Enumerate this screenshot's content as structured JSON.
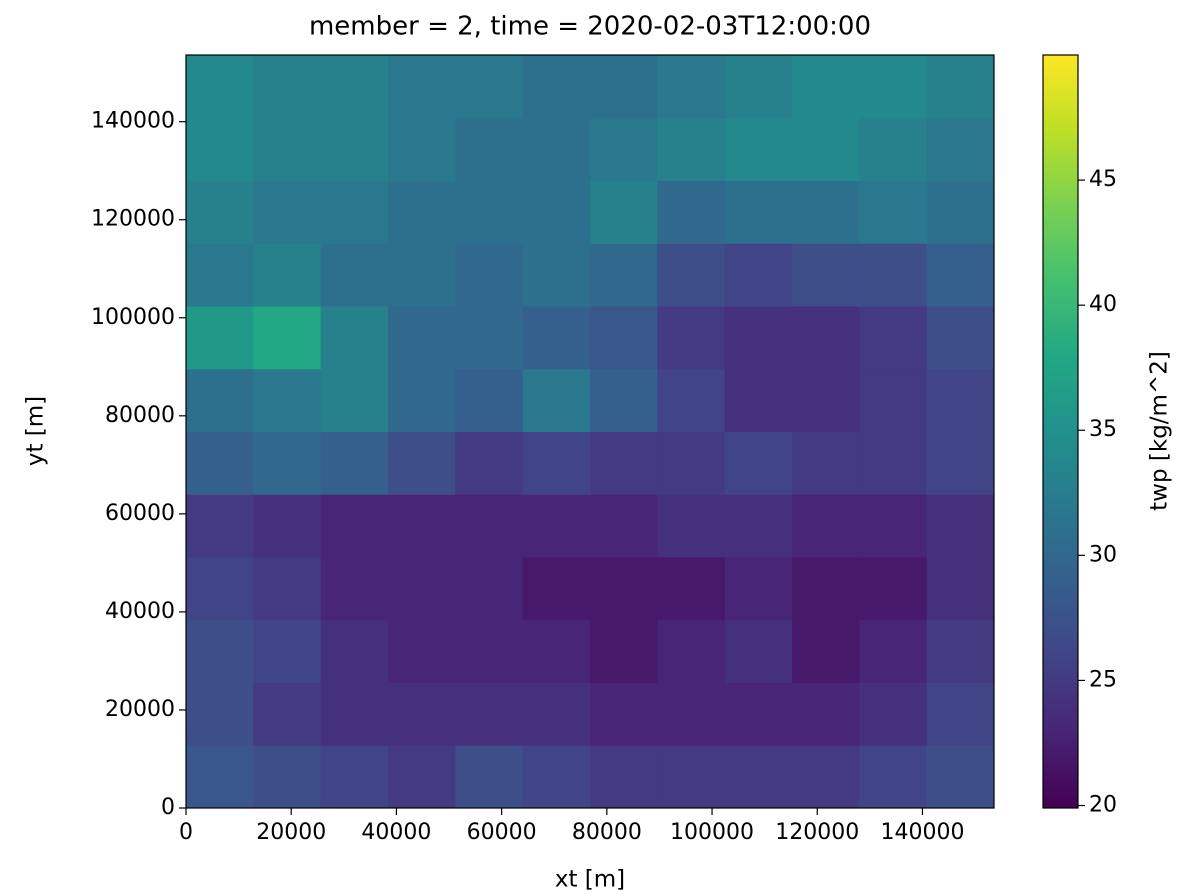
{
  "chart_data": {
    "type": "heatmap",
    "title": "member = 2, time = 2020-02-03T12:00:00",
    "x_label": "xt [m]",
    "y_label": "yt [m]",
    "colorbar_label": "twp [kg/m^2]",
    "colormap": "viridis",
    "x": [
      6400,
      19200,
      32000,
      44800,
      57600,
      70400,
      83200,
      96000,
      108800,
      121600,
      134400,
      147200
    ],
    "y": [
      6400,
      19200,
      32000,
      44800,
      57600,
      70400,
      83200,
      96000,
      108800,
      121600,
      134400,
      147200
    ],
    "z": [
      [
        28,
        27,
        26,
        25,
        27,
        26,
        25,
        25,
        25,
        25,
        26,
        27
      ],
      [
        27,
        25,
        24,
        24,
        24,
        24,
        23,
        23,
        23,
        23,
        24,
        26
      ],
      [
        27,
        26,
        24,
        23,
        23,
        23,
        22,
        23,
        24,
        22,
        23,
        25
      ],
      [
        26,
        25,
        23,
        23,
        23,
        22,
        22,
        22,
        23,
        22,
        22,
        24
      ],
      [
        25,
        24,
        23,
        23,
        23,
        23,
        23,
        24,
        24,
        23,
        23,
        24
      ],
      [
        29,
        30,
        29,
        27,
        25,
        26,
        25,
        25,
        26,
        25,
        25,
        26
      ],
      [
        31,
        32,
        33,
        30,
        29,
        32,
        29,
        26,
        24,
        24,
        25,
        26
      ],
      [
        36,
        38,
        33,
        30,
        30,
        29,
        28,
        25,
        24,
        24,
        25,
        27
      ],
      [
        32,
        33,
        31,
        31,
        30,
        31,
        30,
        27,
        26,
        27,
        27,
        29
      ],
      [
        33,
        32,
        32,
        31,
        31,
        31,
        33,
        30,
        31,
        31,
        32,
        31
      ],
      [
        34,
        33,
        33,
        32,
        31,
        31,
        32,
        33,
        34,
        34,
        33,
        32
      ],
      [
        34,
        33,
        33,
        32,
        32,
        31,
        31,
        32,
        33,
        34,
        34,
        33
      ]
    ],
    "xlim": [
      0,
      153600
    ],
    "ylim": [
      0,
      153600
    ],
    "xticks": [
      0,
      20000,
      40000,
      60000,
      80000,
      100000,
      120000,
      140000
    ],
    "yticks": [
      0,
      20000,
      40000,
      60000,
      80000,
      100000,
      120000,
      140000
    ],
    "clim": [
      19.9,
      50
    ],
    "cticks": [
      20,
      25,
      30,
      35,
      40,
      45
    ]
  }
}
